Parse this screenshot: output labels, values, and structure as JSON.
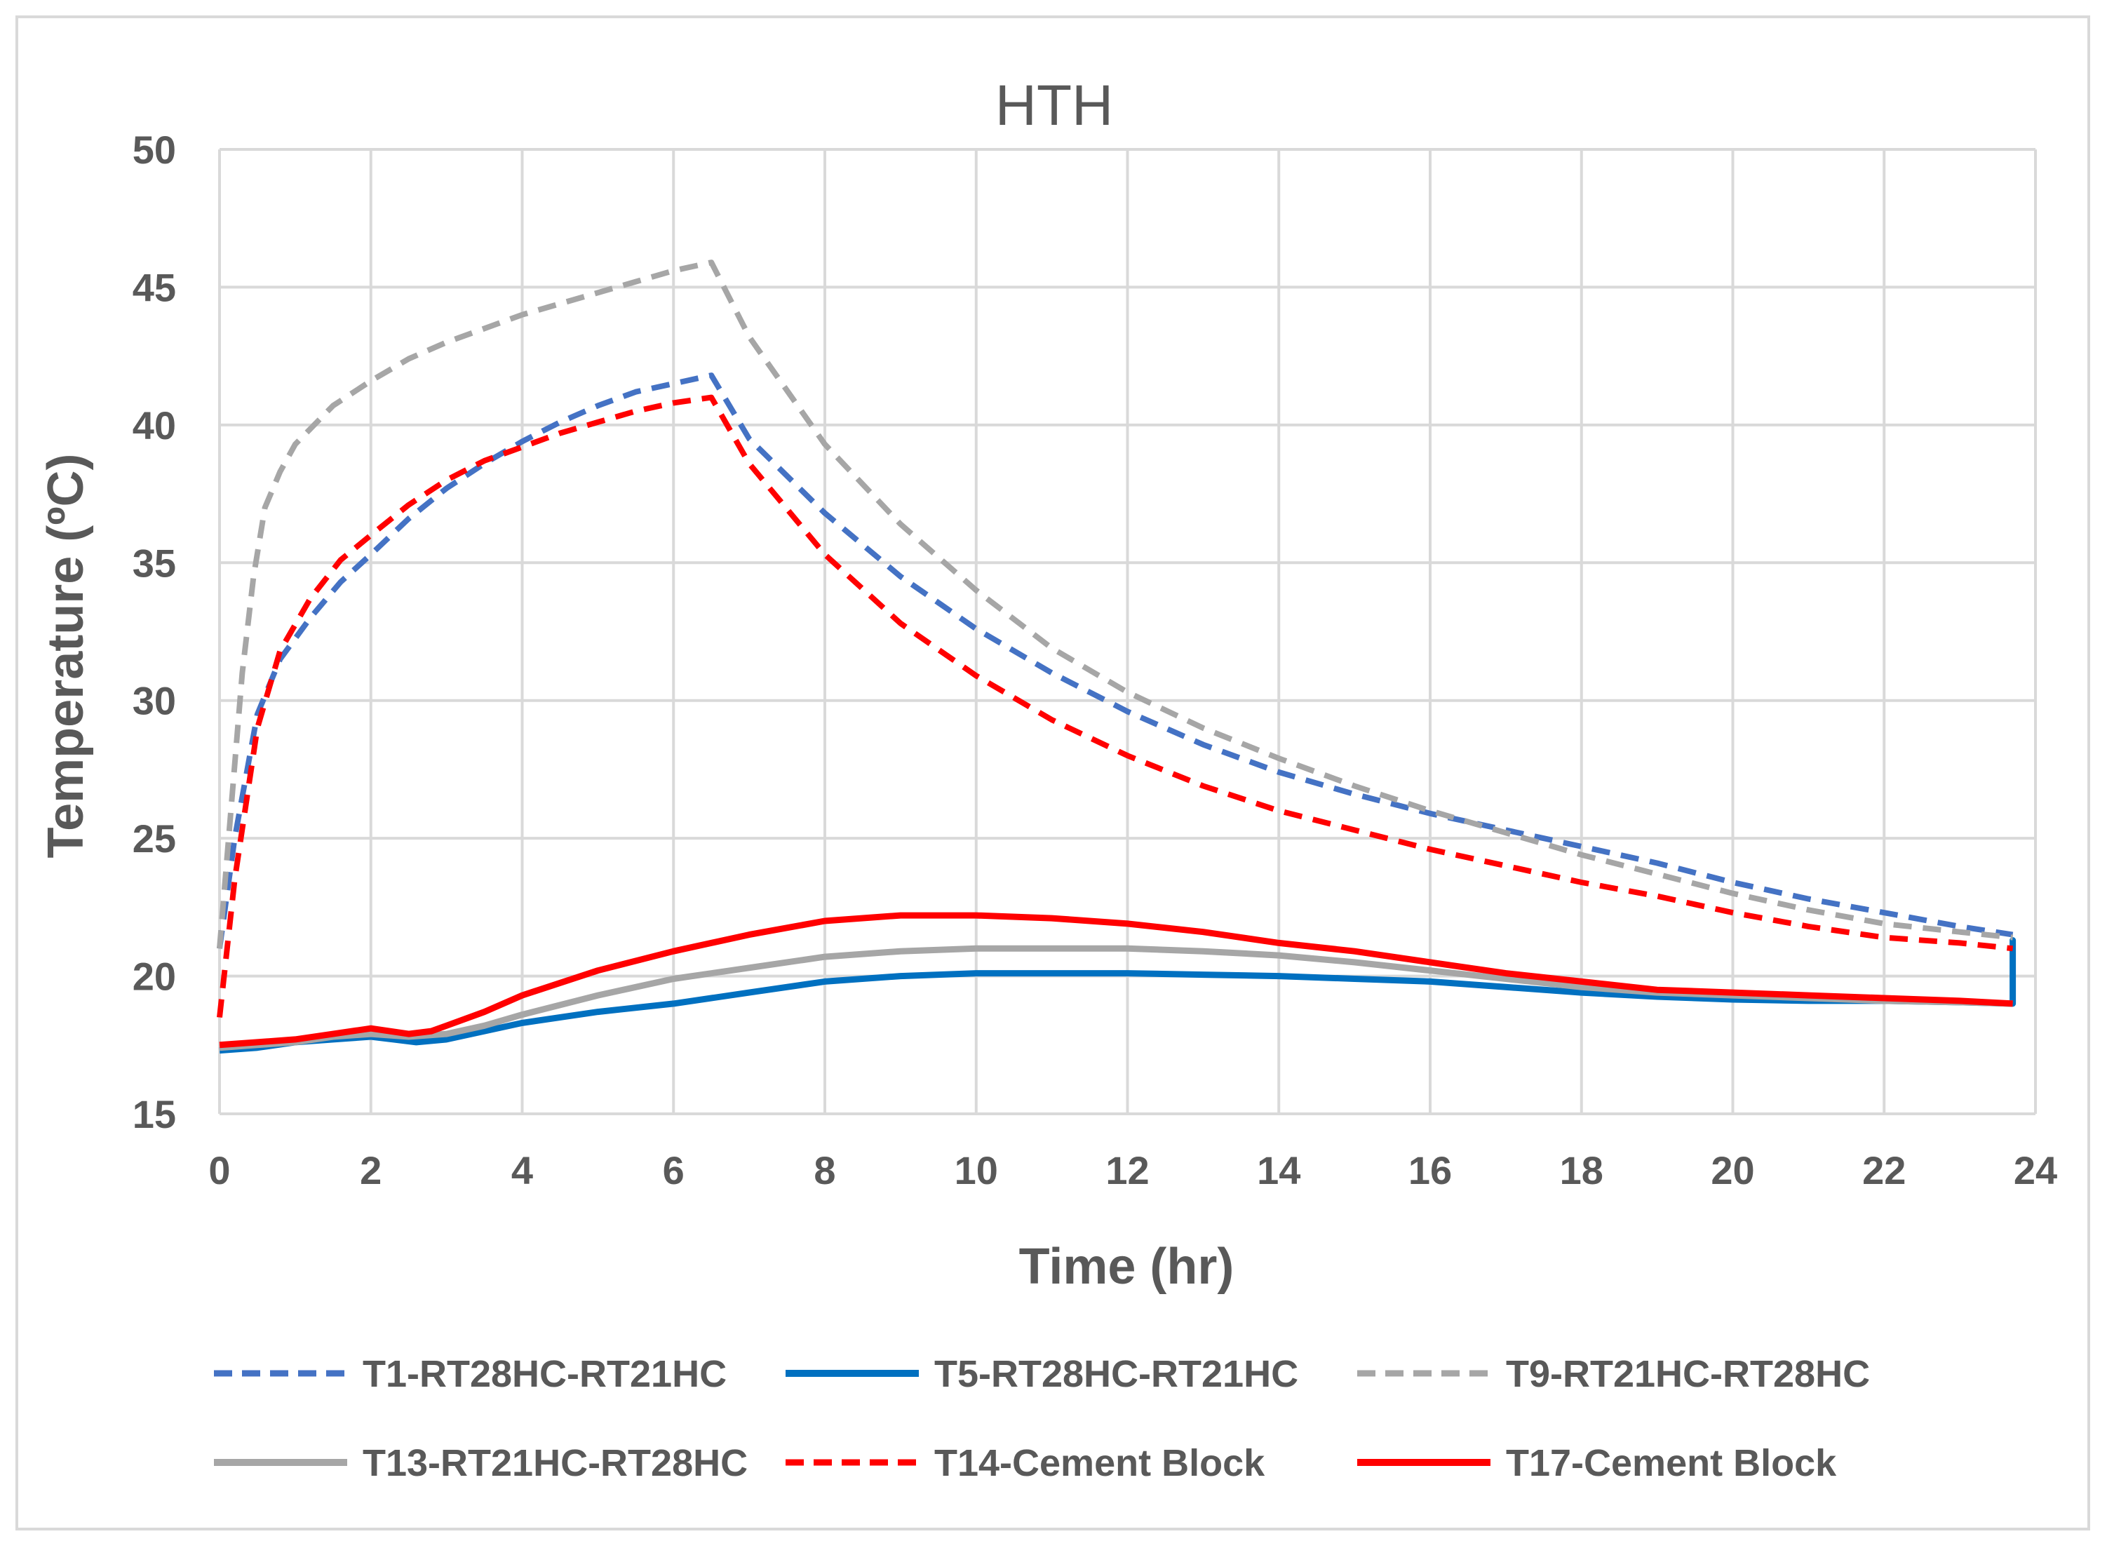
{
  "chart_data": {
    "type": "line",
    "title": "HTH",
    "xlabel": "Time (hr)",
    "ylabel": "Temperature (ºC)",
    "xlim": [
      0,
      24
    ],
    "ylim": [
      15,
      50
    ],
    "xticks": [
      0,
      2,
      4,
      6,
      8,
      10,
      12,
      14,
      16,
      18,
      20,
      22,
      24
    ],
    "yticks": [
      15,
      20,
      25,
      30,
      35,
      40,
      45,
      50
    ],
    "grid": true,
    "legend_position": "bottom",
    "series": [
      {
        "name": "T1-RT28HC-RT21HC",
        "color": "#4472C4",
        "dash": "dashed",
        "x": [
          0,
          0.2,
          0.5,
          0.8,
          1.2,
          1.6,
          2,
          2.5,
          3,
          3.5,
          4,
          4.5,
          5,
          5.5,
          6,
          6.5,
          7,
          8,
          9,
          10,
          11,
          12,
          13,
          14,
          15,
          16,
          17,
          18,
          19,
          20,
          21,
          22,
          23,
          23.7
        ],
        "y": [
          21,
          25,
          29.5,
          31.5,
          33,
          34.3,
          35.3,
          36.6,
          37.7,
          38.6,
          39.4,
          40.1,
          40.7,
          41.2,
          41.5,
          41.8,
          39.5,
          36.8,
          34.5,
          32.6,
          31,
          29.6,
          28.4,
          27.4,
          26.6,
          25.9,
          25.3,
          24.7,
          24.1,
          23.4,
          22.8,
          22.3,
          21.8,
          21.5
        ]
      },
      {
        "name": "T5-RT28HC-RT21HC",
        "color": "#0070C0",
        "dash": "solid",
        "x": [
          0,
          0.5,
          1,
          1.5,
          2,
          2.3,
          2.6,
          3,
          3.5,
          4,
          5,
          6,
          7,
          8,
          9,
          10,
          11,
          12,
          13,
          14,
          15,
          16,
          17,
          18,
          19,
          20,
          21,
          22,
          23,
          23.7,
          23.7,
          23.7
        ],
        "y": [
          17.3,
          17.4,
          17.6,
          17.7,
          17.8,
          17.7,
          17.6,
          17.7,
          18,
          18.3,
          18.7,
          19,
          19.4,
          19.8,
          20,
          20.1,
          20.1,
          20.1,
          20.05,
          20,
          19.9,
          19.8,
          19.6,
          19.4,
          19.25,
          19.15,
          19.1,
          19.1,
          19.05,
          19,
          21.3,
          19.3
        ]
      },
      {
        "name": "T9-RT21HC-RT28HC",
        "color": "#A6A6A6",
        "dash": "dashed",
        "x": [
          0,
          0.15,
          0.3,
          0.45,
          0.6,
          0.8,
          1,
          1.5,
          2,
          2.5,
          3,
          3.5,
          4,
          4.5,
          5,
          5.5,
          6,
          6.5,
          7,
          8,
          9,
          10,
          11,
          12,
          13,
          14,
          15,
          16,
          17,
          18,
          19,
          20,
          21,
          22,
          23,
          23.7
        ],
        "y": [
          21,
          26,
          31,
          34.5,
          37,
          38.3,
          39.3,
          40.7,
          41.6,
          42.4,
          43,
          43.5,
          44,
          44.4,
          44.8,
          45.2,
          45.6,
          45.9,
          43.2,
          39.3,
          36.4,
          34,
          31.9,
          30.3,
          29,
          27.9,
          26.9,
          26,
          25.2,
          24.4,
          23.7,
          23,
          22.4,
          21.9,
          21.6,
          21.4
        ]
      },
      {
        "name": "T13-RT21HC-RT28HC",
        "color": "#A6A6A6",
        "dash": "solid",
        "x": [
          0,
          0.5,
          1,
          1.5,
          2,
          2.5,
          3,
          3.5,
          4,
          5,
          6,
          7,
          8,
          9,
          10,
          11,
          12,
          13,
          14,
          15,
          16,
          17,
          18,
          19,
          20,
          21,
          22,
          23,
          23.7
        ],
        "y": [
          17.4,
          17.5,
          17.6,
          17.8,
          17.9,
          17.8,
          17.9,
          18.2,
          18.6,
          19.3,
          19.9,
          20.3,
          20.7,
          20.9,
          21,
          21,
          21,
          20.9,
          20.75,
          20.5,
          20.2,
          19.9,
          19.6,
          19.4,
          19.3,
          19.2,
          19.1,
          19.05,
          19
        ]
      },
      {
        "name": "T14-Cement Block",
        "color": "#FF0000",
        "dash": "dashed",
        "x": [
          0,
          0.2,
          0.5,
          0.8,
          1.2,
          1.6,
          2,
          2.5,
          3,
          3.5,
          4,
          4.5,
          5,
          5.5,
          6,
          6.5,
          7,
          8,
          9,
          10,
          11,
          12,
          13,
          14,
          15,
          16,
          17,
          18,
          19,
          20,
          21,
          22,
          23,
          23.7
        ],
        "y": [
          18.5,
          23.5,
          29,
          31.8,
          33.7,
          35.1,
          36,
          37.1,
          38,
          38.7,
          39.2,
          39.7,
          40.1,
          40.5,
          40.8,
          41,
          38.6,
          35.3,
          32.8,
          30.9,
          29.3,
          28,
          26.9,
          26,
          25.3,
          24.6,
          24,
          23.4,
          22.9,
          22.3,
          21.8,
          21.4,
          21.2,
          21
        ]
      },
      {
        "name": "T17-Cement Block",
        "color": "#FF0000",
        "dash": "solid",
        "x": [
          0,
          0.5,
          1,
          1.5,
          2,
          2.5,
          2.8,
          3,
          3.5,
          4,
          5,
          6,
          7,
          8,
          9,
          10,
          11,
          12,
          13,
          14,
          15,
          16,
          17,
          18,
          19,
          20,
          21,
          22,
          23,
          23.7
        ],
        "y": [
          17.5,
          17.6,
          17.7,
          17.9,
          18.1,
          17.9,
          18,
          18.2,
          18.7,
          19.3,
          20.2,
          20.9,
          21.5,
          22,
          22.2,
          22.2,
          22.1,
          21.9,
          21.6,
          21.2,
          20.9,
          20.5,
          20.1,
          19.8,
          19.5,
          19.4,
          19.3,
          19.2,
          19.1,
          19
        ]
      }
    ]
  }
}
